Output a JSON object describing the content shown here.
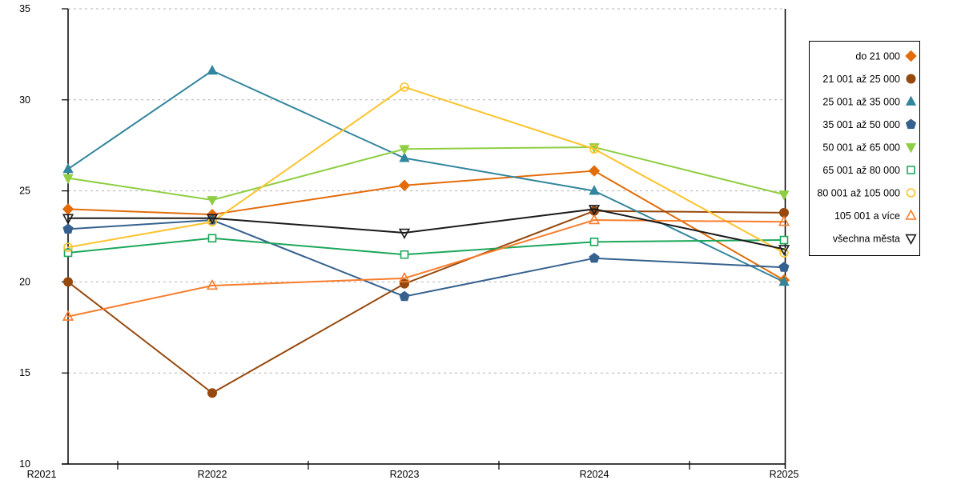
{
  "chart_data": {
    "type": "line",
    "title": "",
    "xlabel": "",
    "ylabel": "",
    "categories": [
      "R2021",
      "R2022",
      "R2023",
      "R2024",
      "R2025"
    ],
    "y_axis": {
      "min": 10,
      "max": 35,
      "step": 5,
      "tick_labels": [
        "10",
        "15",
        "20",
        "25",
        "30",
        "35"
      ]
    },
    "grid": "horizontal dashed",
    "legend_position": "right",
    "colors": {
      "axis": "#000000",
      "gridline": "#b3b3b3",
      "legend_border": "#000000",
      "background": "#ffffff",
      "text": "#000000"
    },
    "series": [
      {
        "name": "do 21 000",
        "color": "#E36C0A",
        "marker": "diamond",
        "marker_fill": "solid",
        "values": [
          24.0,
          23.7,
          25.3,
          26.1,
          20.1
        ]
      },
      {
        "name": "21 001 až 25 000",
        "color": "#96490E",
        "marker": "circle",
        "marker_fill": "solid",
        "values": [
          20.0,
          13.9,
          19.9,
          23.9,
          23.8
        ]
      },
      {
        "name": "25 001 až 35 000",
        "color": "#31859C",
        "marker": "triangle-up",
        "marker_fill": "solid",
        "values": [
          26.2,
          31.6,
          26.8,
          25.0,
          20.0
        ]
      },
      {
        "name": "35 001 až 50 000",
        "color": "#36618E",
        "marker": "pentagon",
        "marker_fill": "solid",
        "values": [
          22.9,
          23.4,
          19.2,
          21.3,
          20.8
        ]
      },
      {
        "name": "50 001 až 65 000",
        "color": "#8FCE42",
        "marker": "triangle-down",
        "marker_fill": "solid",
        "values": [
          25.7,
          24.5,
          27.3,
          27.4,
          24.8
        ]
      },
      {
        "name": "65 001 až 80 000",
        "color": "#1CA75A",
        "marker": "square",
        "marker_fill": "open",
        "values": [
          21.6,
          22.4,
          21.5,
          22.2,
          22.3
        ]
      },
      {
        "name": "80 001 až 105 000",
        "color": "#FDC32C",
        "marker": "circle",
        "marker_fill": "open",
        "values": [
          21.9,
          23.3,
          30.7,
          27.3,
          21.6
        ]
      },
      {
        "name": "105 001 a více",
        "color": "#F87D2C",
        "marker": "triangle-up",
        "marker_fill": "open",
        "values": [
          18.1,
          19.8,
          20.2,
          23.4,
          23.3
        ]
      },
      {
        "name": "všechna města",
        "color": "#1A1A1A",
        "marker": "triangle-down",
        "marker_fill": "open",
        "values": [
          23.5,
          23.5,
          22.7,
          24.0,
          21.8
        ]
      }
    ]
  }
}
